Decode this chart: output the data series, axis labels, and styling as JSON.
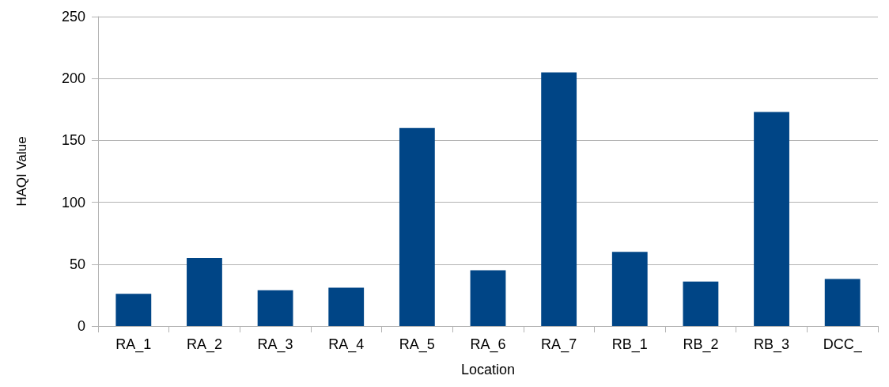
{
  "chart_data": {
    "type": "bar",
    "xlabel": "Location",
    "ylabel": "HAQI Value",
    "categories": [
      "RA_1",
      "RA_2",
      "RA_3",
      "RA_4",
      "RA_5",
      "RA_6",
      "RA_7",
      "RB_1",
      "RB_2",
      "RB_3",
      "DCC_"
    ],
    "values": [
      26,
      55,
      29,
      31,
      160,
      45,
      205,
      60,
      36,
      173,
      38
    ],
    "color": "#004586",
    "ylim": [
      0,
      250
    ],
    "yticks": [
      0,
      50,
      100,
      150,
      200,
      250
    ],
    "grid": "y"
  }
}
